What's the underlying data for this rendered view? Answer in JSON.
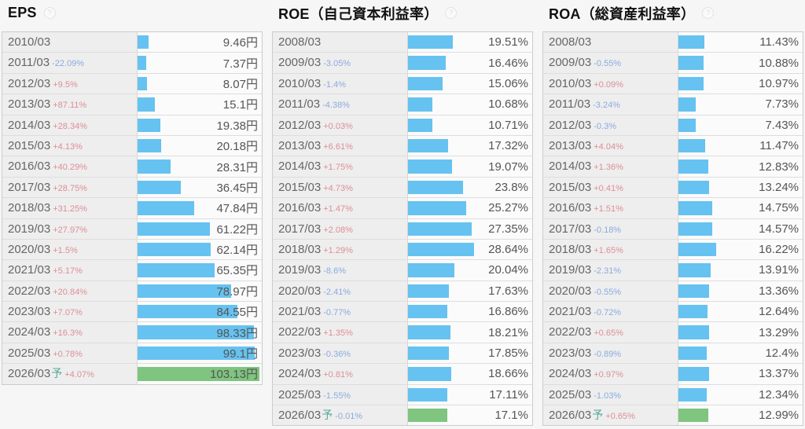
{
  "colors": {
    "bar_blue": "#66c2f0",
    "bar_green": "#7fc47f",
    "positive": "#dd8e96",
    "negative": "#8aabdf",
    "forecast_mark": "#55a896"
  },
  "icons": {
    "help": "?"
  },
  "chart_data": [
    {
      "id": "eps",
      "type": "bar",
      "title": "EPS",
      "unit": "円",
      "layout": "horizontal bars in table rows, no axes, no gridlines",
      "bar_scale_max": 105,
      "rows": [
        {
          "year": "2010/03",
          "change": "",
          "value": 9.46,
          "value_label": "9.46円",
          "forecast": false
        },
        {
          "year": "2011/03",
          "change": "-22.09%",
          "value": 7.37,
          "value_label": "7.37円",
          "forecast": false
        },
        {
          "year": "2012/03",
          "change": "+9.5%",
          "value": 8.07,
          "value_label": "8.07円",
          "forecast": false
        },
        {
          "year": "2013/03",
          "change": "+87.11%",
          "value": 15.1,
          "value_label": "15.1円",
          "forecast": false
        },
        {
          "year": "2014/03",
          "change": "+28.34%",
          "value": 19.38,
          "value_label": "19.38円",
          "forecast": false
        },
        {
          "year": "2015/03",
          "change": "+4.13%",
          "value": 20.18,
          "value_label": "20.18円",
          "forecast": false
        },
        {
          "year": "2016/03",
          "change": "+40.29%",
          "value": 28.31,
          "value_label": "28.31円",
          "forecast": false
        },
        {
          "year": "2017/03",
          "change": "+28.75%",
          "value": 36.45,
          "value_label": "36.45円",
          "forecast": false
        },
        {
          "year": "2018/03",
          "change": "+31.25%",
          "value": 47.84,
          "value_label": "47.84円",
          "forecast": false
        },
        {
          "year": "2019/03",
          "change": "+27.97%",
          "value": 61.22,
          "value_label": "61.22円",
          "forecast": false
        },
        {
          "year": "2020/03",
          "change": "+1.5%",
          "value": 62.14,
          "value_label": "62.14円",
          "forecast": false
        },
        {
          "year": "2021/03",
          "change": "+5.17%",
          "value": 65.35,
          "value_label": "65.35円",
          "forecast": false
        },
        {
          "year": "2022/03",
          "change": "+20.84%",
          "value": 78.97,
          "value_label": "78.97円",
          "forecast": false
        },
        {
          "year": "2023/03",
          "change": "+7.07%",
          "value": 84.55,
          "value_label": "84.55円",
          "forecast": false
        },
        {
          "year": "2024/03",
          "change": "+16.3%",
          "value": 98.33,
          "value_label": "98.33円",
          "forecast": false
        },
        {
          "year": "2025/03",
          "change": "+0.78%",
          "value": 99.1,
          "value_label": "99.1円",
          "forecast": false
        },
        {
          "year": "2026/03",
          "forecast_mark": "予",
          "change": "+4.07%",
          "value": 103.13,
          "value_label": "103.13円",
          "forecast": true
        }
      ]
    },
    {
      "id": "roe",
      "type": "bar",
      "title": "ROE（自己資本利益率）",
      "unit": "%",
      "layout": "horizontal bars in table rows, no axes, no gridlines",
      "bar_scale_max": 53.5,
      "rows": [
        {
          "year": "2008/03",
          "change": "",
          "value": 19.51,
          "value_label": "19.51%",
          "forecast": false
        },
        {
          "year": "2009/03",
          "change": "-3.05%",
          "value": 16.46,
          "value_label": "16.46%",
          "forecast": false
        },
        {
          "year": "2010/03",
          "change": "-1.4%",
          "value": 15.06,
          "value_label": "15.06%",
          "forecast": false
        },
        {
          "year": "2011/03",
          "change": "-4.38%",
          "value": 10.68,
          "value_label": "10.68%",
          "forecast": false
        },
        {
          "year": "2012/03",
          "change": "+0.03%",
          "value": 10.71,
          "value_label": "10.71%",
          "forecast": false
        },
        {
          "year": "2013/03",
          "change": "+6.61%",
          "value": 17.32,
          "value_label": "17.32%",
          "forecast": false
        },
        {
          "year": "2014/03",
          "change": "+1.75%",
          "value": 19.07,
          "value_label": "19.07%",
          "forecast": false
        },
        {
          "year": "2015/03",
          "change": "+4.73%",
          "value": 23.8,
          "value_label": "23.8%",
          "forecast": false
        },
        {
          "year": "2016/03",
          "change": "+1.47%",
          "value": 25.27,
          "value_label": "25.27%",
          "forecast": false
        },
        {
          "year": "2017/03",
          "change": "+2.08%",
          "value": 27.35,
          "value_label": "27.35%",
          "forecast": false
        },
        {
          "year": "2018/03",
          "change": "+1.29%",
          "value": 28.64,
          "value_label": "28.64%",
          "forecast": false
        },
        {
          "year": "2019/03",
          "change": "-8.6%",
          "value": 20.04,
          "value_label": "20.04%",
          "forecast": false
        },
        {
          "year": "2020/03",
          "change": "-2.41%",
          "value": 17.63,
          "value_label": "17.63%",
          "forecast": false
        },
        {
          "year": "2021/03",
          "change": "-0.77%",
          "value": 16.86,
          "value_label": "16.86%",
          "forecast": false
        },
        {
          "year": "2022/03",
          "change": "+1.35%",
          "value": 18.21,
          "value_label": "18.21%",
          "forecast": false
        },
        {
          "year": "2023/03",
          "change": "-0.36%",
          "value": 17.85,
          "value_label": "17.85%",
          "forecast": false
        },
        {
          "year": "2024/03",
          "change": "+0.81%",
          "value": 18.66,
          "value_label": "18.66%",
          "forecast": false
        },
        {
          "year": "2025/03",
          "change": "-1.55%",
          "value": 17.11,
          "value_label": "17.11%",
          "forecast": false
        },
        {
          "year": "2026/03",
          "forecast_mark": "予",
          "change": "-0.01%",
          "value": 17.1,
          "value_label": "17.1%",
          "forecast": true
        }
      ]
    },
    {
      "id": "roa",
      "type": "bar",
      "title": "ROA（総資産利益率）",
      "unit": "%",
      "layout": "horizontal bars in table rows, no axes, no gridlines",
      "bar_scale_max": 53.5,
      "rows": [
        {
          "year": "2008/03",
          "change": "",
          "value": 11.43,
          "value_label": "11.43%",
          "forecast": false
        },
        {
          "year": "2009/03",
          "change": "-0.55%",
          "value": 10.88,
          "value_label": "10.88%",
          "forecast": false
        },
        {
          "year": "2010/03",
          "change": "+0.09%",
          "value": 10.97,
          "value_label": "10.97%",
          "forecast": false
        },
        {
          "year": "2011/03",
          "change": "-3.24%",
          "value": 7.73,
          "value_label": "7.73%",
          "forecast": false
        },
        {
          "year": "2012/03",
          "change": "-0.3%",
          "value": 7.43,
          "value_label": "7.43%",
          "forecast": false
        },
        {
          "year": "2013/03",
          "change": "+4.04%",
          "value": 11.47,
          "value_label": "11.47%",
          "forecast": false
        },
        {
          "year": "2014/03",
          "change": "+1.36%",
          "value": 12.83,
          "value_label": "12.83%",
          "forecast": false
        },
        {
          "year": "2015/03",
          "change": "+0.41%",
          "value": 13.24,
          "value_label": "13.24%",
          "forecast": false
        },
        {
          "year": "2016/03",
          "change": "+1.51%",
          "value": 14.75,
          "value_label": "14.75%",
          "forecast": false
        },
        {
          "year": "2017/03",
          "change": "-0.18%",
          "value": 14.57,
          "value_label": "14.57%",
          "forecast": false
        },
        {
          "year": "2018/03",
          "change": "+1.65%",
          "value": 16.22,
          "value_label": "16.22%",
          "forecast": false
        },
        {
          "year": "2019/03",
          "change": "-2.31%",
          "value": 13.91,
          "value_label": "13.91%",
          "forecast": false
        },
        {
          "year": "2020/03",
          "change": "-0.55%",
          "value": 13.36,
          "value_label": "13.36%",
          "forecast": false
        },
        {
          "year": "2021/03",
          "change": "-0.72%",
          "value": 12.64,
          "value_label": "12.64%",
          "forecast": false
        },
        {
          "year": "2022/03",
          "change": "+0.65%",
          "value": 13.29,
          "value_label": "13.29%",
          "forecast": false
        },
        {
          "year": "2023/03",
          "change": "-0.89%",
          "value": 12.4,
          "value_label": "12.4%",
          "forecast": false
        },
        {
          "year": "2024/03",
          "change": "+0.97%",
          "value": 13.37,
          "value_label": "13.37%",
          "forecast": false
        },
        {
          "year": "2025/03",
          "change": "-1.03%",
          "value": 12.34,
          "value_label": "12.34%",
          "forecast": false
        },
        {
          "year": "2026/03",
          "forecast_mark": "予",
          "change": "+0.65%",
          "value": 12.99,
          "value_label": "12.99%",
          "forecast": true
        }
      ]
    }
  ]
}
